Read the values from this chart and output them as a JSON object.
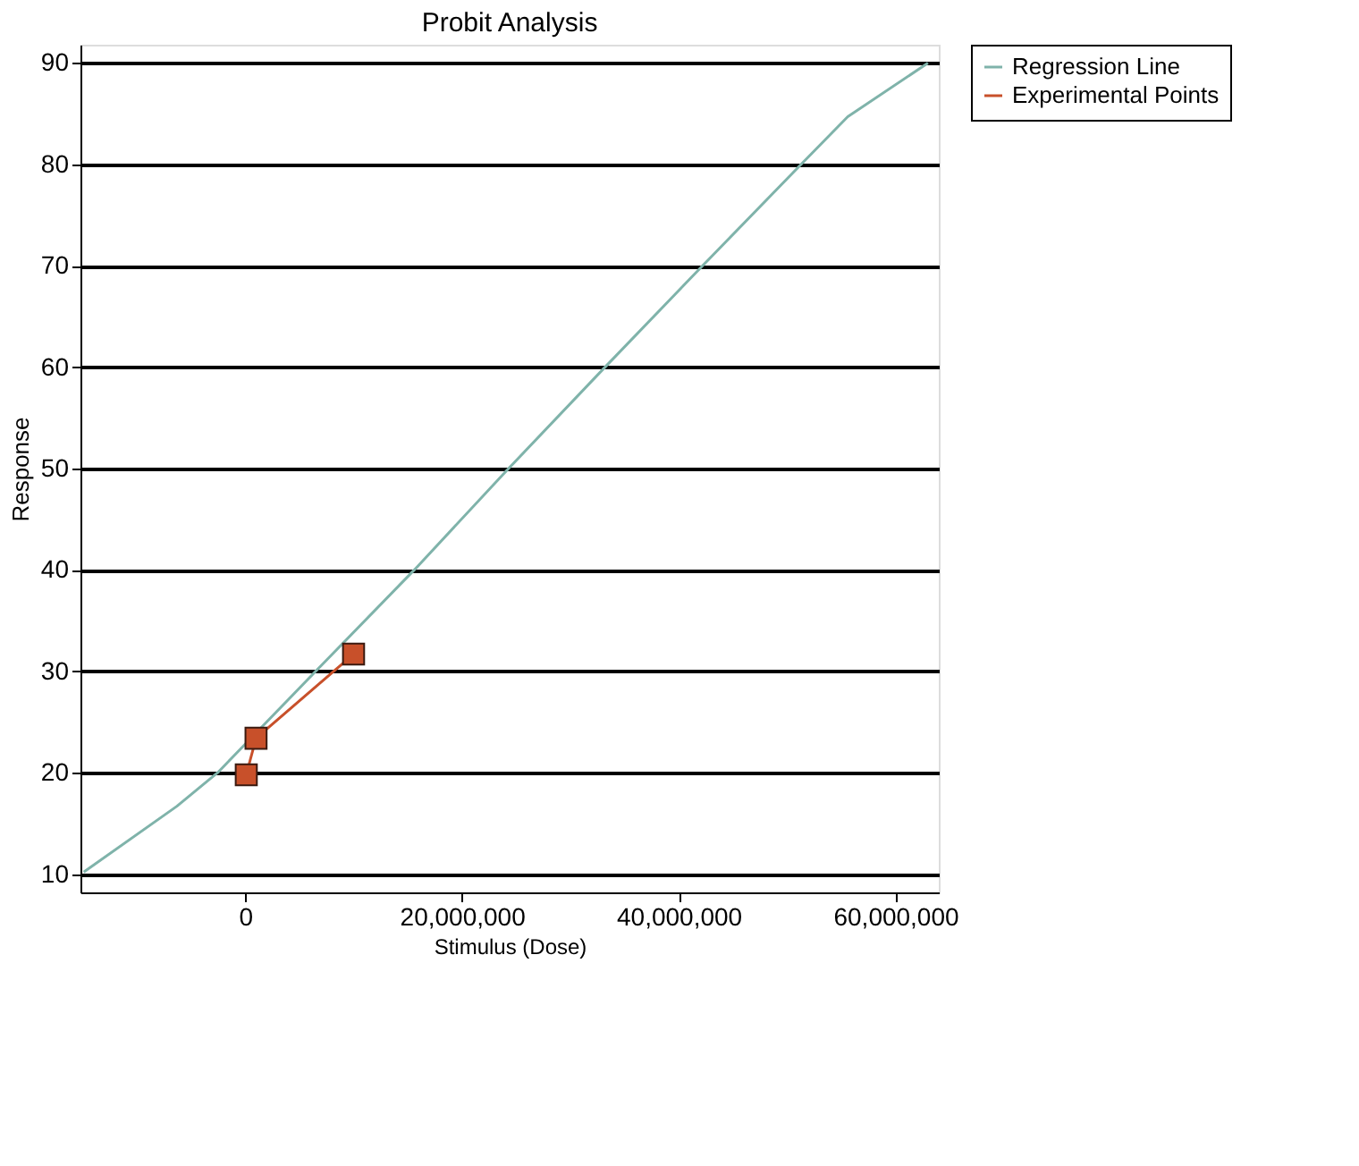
{
  "chart_data": {
    "type": "line",
    "title": "Probit Analysis",
    "xlabel": "Stimulus (Dose)",
    "ylabel": "Response",
    "xlim": [
      -15200000,
      64000000
    ],
    "ylim": [
      8.2,
      91.8
    ],
    "xticks": [
      0,
      {
        "value": 20000000,
        "label": "20,000,000"
      },
      {
        "value": 40000000,
        "label": "40,000,000"
      },
      {
        "value": 60000000,
        "label": "60,000,000"
      }
    ],
    "yticks": [
      10,
      20,
      30,
      40,
      50,
      60,
      70,
      80,
      90
    ],
    "grid": "y",
    "legend": "top right",
    "series": [
      {
        "name": "Regression Line",
        "color": "#7fb3aa",
        "marker": "none",
        "x": [
          -14900000,
          -6300000,
          -2550000,
          6500000,
          15600000,
          24300000,
          33200000,
          42200000,
          51300000,
          55600000,
          63000000
        ],
        "values": [
          10.2,
          16.7,
          20,
          30,
          40,
          50,
          60,
          70,
          80,
          84.7,
          90
        ]
      },
      {
        "name": "Experimental Points",
        "color": "#c8502a",
        "marker": "square",
        "x": [
          100000,
          1000000,
          10000000
        ],
        "values": [
          19.8,
          23.4,
          31.7
        ]
      }
    ]
  }
}
